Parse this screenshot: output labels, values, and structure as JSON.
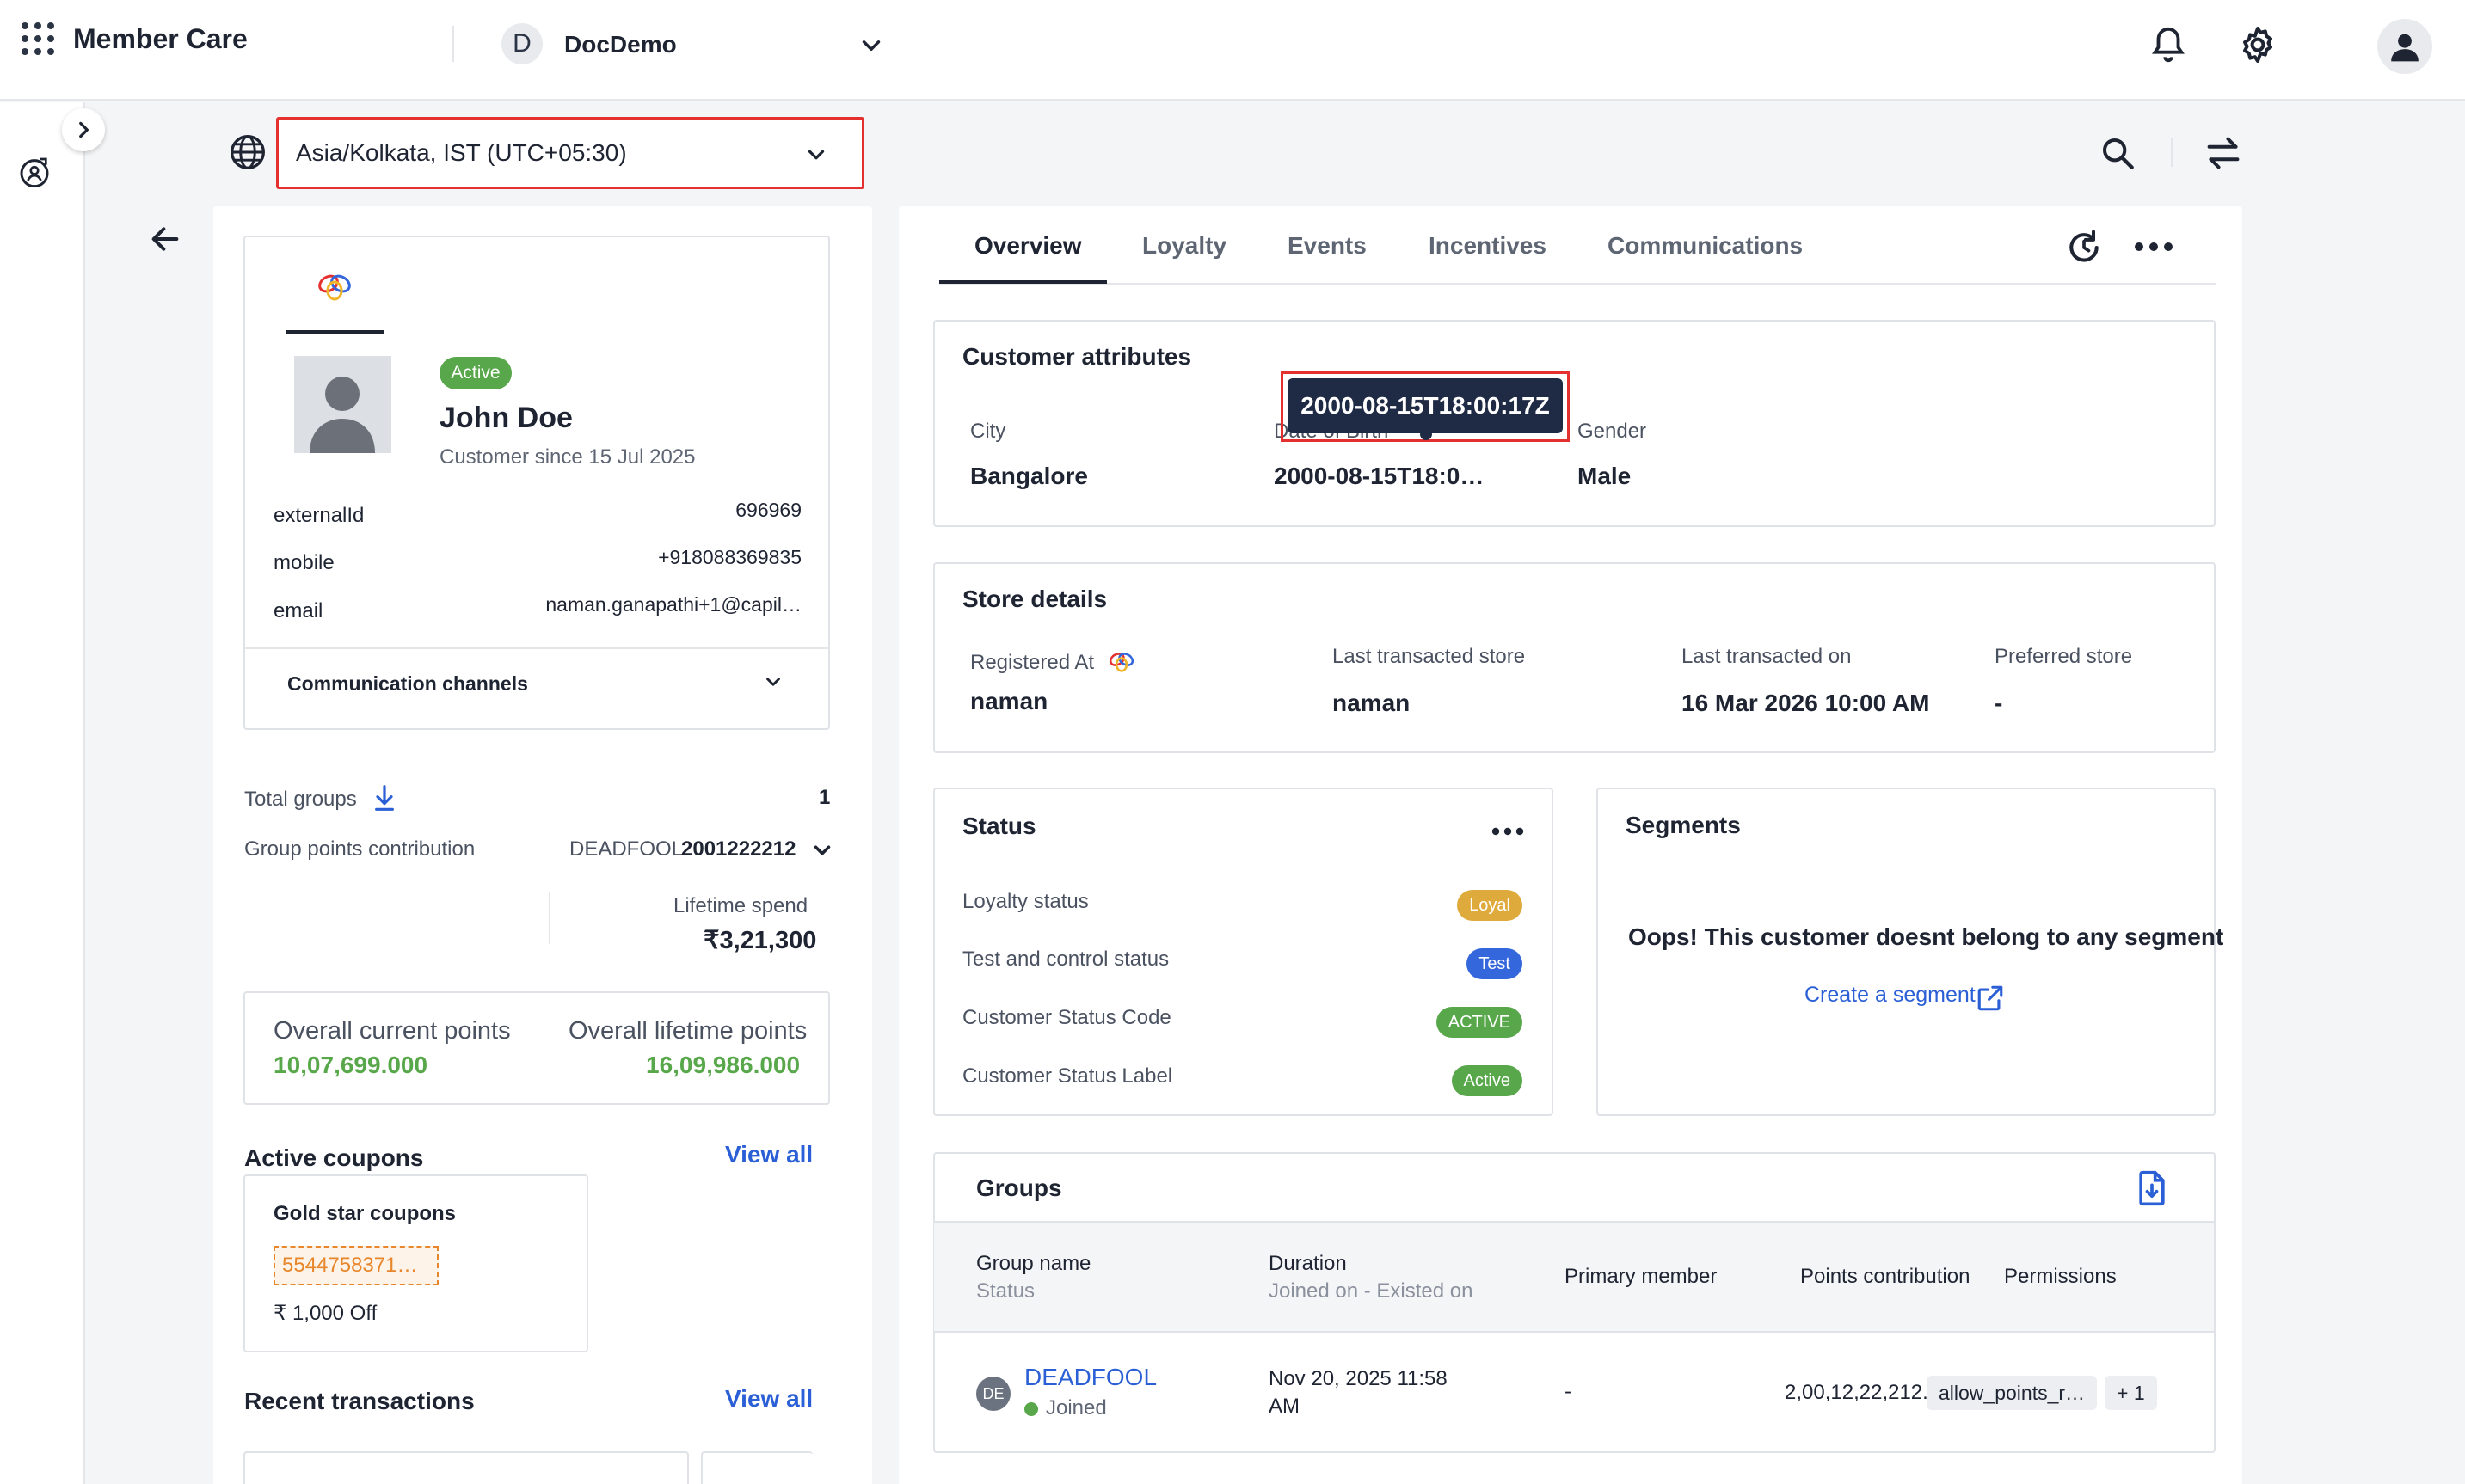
{
  "header": {
    "app_title": "Member Care",
    "org_initial": "D",
    "org_name": "DocDemo",
    "icons": [
      "apps-grid-icon",
      "chevron-down-icon",
      "bell-icon",
      "gear-icon",
      "user-icon"
    ]
  },
  "toolbar": {
    "timezone": "Asia/Kolkata, IST (UTC+05:30)",
    "icons": [
      "globe-icon",
      "search-icon",
      "swap-icon"
    ]
  },
  "profile": {
    "status_badge": "Active",
    "name": "John Doe",
    "customer_since": "Customer since 15 Jul 2025",
    "fields": [
      {
        "label": "externalId",
        "value": "696969"
      },
      {
        "label": "mobile",
        "value": "+918088369835"
      },
      {
        "label": "email",
        "value": "naman.ganapathi+1@capil…"
      }
    ],
    "communication_channels": "Communication channels"
  },
  "groups_summary": {
    "total_groups_label": "Total groups",
    "total_groups_value": "1",
    "contribution_label": "Group points contribution",
    "group_name": "DEADFOOL",
    "group_points": "2001222212",
    "lifetime_spend_label": "Lifetime spend",
    "lifetime_spend_value": "₹3,21,300"
  },
  "points": {
    "current_label": "Overall current points",
    "current_value": "10,07,699.000",
    "lifetime_label": "Overall lifetime points",
    "lifetime_value": "16,09,986.000"
  },
  "coupons": {
    "title": "Active coupons",
    "view_all": "View all",
    "items": [
      {
        "title": "Gold star coupons",
        "code": "5544758371…",
        "offer": "₹ 1,000 Off"
      }
    ]
  },
  "transactions": {
    "title": "Recent transactions",
    "view_all": "View all"
  },
  "tabs": [
    "Overview",
    "Loyalty",
    "Events",
    "Incentives",
    "Communications"
  ],
  "customer_attributes": {
    "title": "Customer attributes",
    "tooltip": "2000-08-15T18:00:17Z",
    "items": [
      {
        "label": "City",
        "value": "Bangalore"
      },
      {
        "label": "Date of Birth",
        "value": "2000-08-15T18:0…"
      },
      {
        "label": "Gender",
        "value": "Male"
      }
    ]
  },
  "store_details": {
    "title": "Store details",
    "items": [
      {
        "label": "Registered At",
        "value": "naman"
      },
      {
        "label": "Last transacted store",
        "value": "naman"
      },
      {
        "label": "Last transacted on",
        "value": "16 Mar 2026 10:00 AM"
      },
      {
        "label": "Preferred store",
        "value": "-"
      }
    ]
  },
  "status": {
    "title": "Status",
    "rows": [
      {
        "label": "Loyalty status",
        "badge": "Loyal",
        "color": "#dfaa3c"
      },
      {
        "label": "Test and control status",
        "badge": "Test",
        "color": "#3467db"
      },
      {
        "label": "Customer Status Code",
        "badge": "ACTIVE",
        "color": "#58a84b"
      },
      {
        "label": "Customer Status Label",
        "badge": "Active",
        "color": "#58a84b"
      }
    ]
  },
  "segments": {
    "title": "Segments",
    "empty_message": "Oops! This customer doesnt belong to any segment",
    "create_link": "Create a segment"
  },
  "groups": {
    "title": "Groups",
    "columns": {
      "name": "Group name",
      "name_sub": "Status",
      "duration": "Duration",
      "duration_sub": "Joined on - Existed on",
      "primary": "Primary member",
      "points": "Points contribution",
      "permissions": "Permissions"
    },
    "rows": [
      {
        "initials": "DE",
        "name": "DEADFOOL",
        "status": "Joined",
        "duration_line1": "Nov 20, 2025 11:58",
        "duration_line2": "AM",
        "primary": "-",
        "points": "2,00,12,22,212.0",
        "permission": "allow_points_r…",
        "more": "+ 1"
      }
    ]
  },
  "colors": {
    "accent": "#2a5fd6",
    "green": "#58a84b",
    "highlight": "#e4312f",
    "coupon": "#e8862b"
  }
}
